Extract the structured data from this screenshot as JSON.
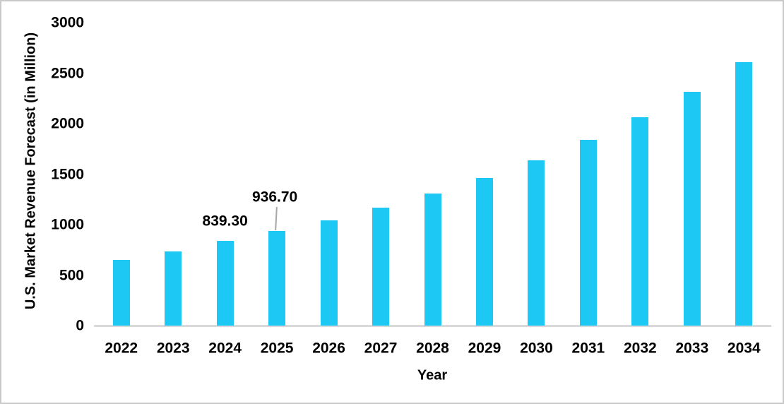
{
  "chart_data": {
    "type": "bar",
    "title": "",
    "xlabel": "Year",
    "ylabel": "U.S. Market Revenue Forecast (in Million)",
    "categories": [
      "2022",
      "2023",
      "2024",
      "2025",
      "2026",
      "2027",
      "2028",
      "2029",
      "2030",
      "2031",
      "2032",
      "2033",
      "2034"
    ],
    "values": [
      650,
      735,
      839.3,
      936.7,
      1045,
      1170,
      1310,
      1460,
      1635,
      1840,
      2065,
      2315,
      2610
    ],
    "ylim": [
      0,
      3000
    ],
    "yticks": [
      0,
      500,
      1000,
      1500,
      2000,
      2500,
      3000
    ],
    "grid": false,
    "legend": null,
    "data_labels": [
      {
        "category": "2024",
        "text": "839.30",
        "leader": false
      },
      {
        "category": "2025",
        "text": "936.70",
        "leader": true
      }
    ],
    "colors": {
      "bar": "#1dc8f5",
      "axis_line": "#d9d9d9",
      "leader_line": "#a6a6a6",
      "text": "#000000",
      "frame_border": "#c9c9c9",
      "background": "#ffffff"
    }
  }
}
